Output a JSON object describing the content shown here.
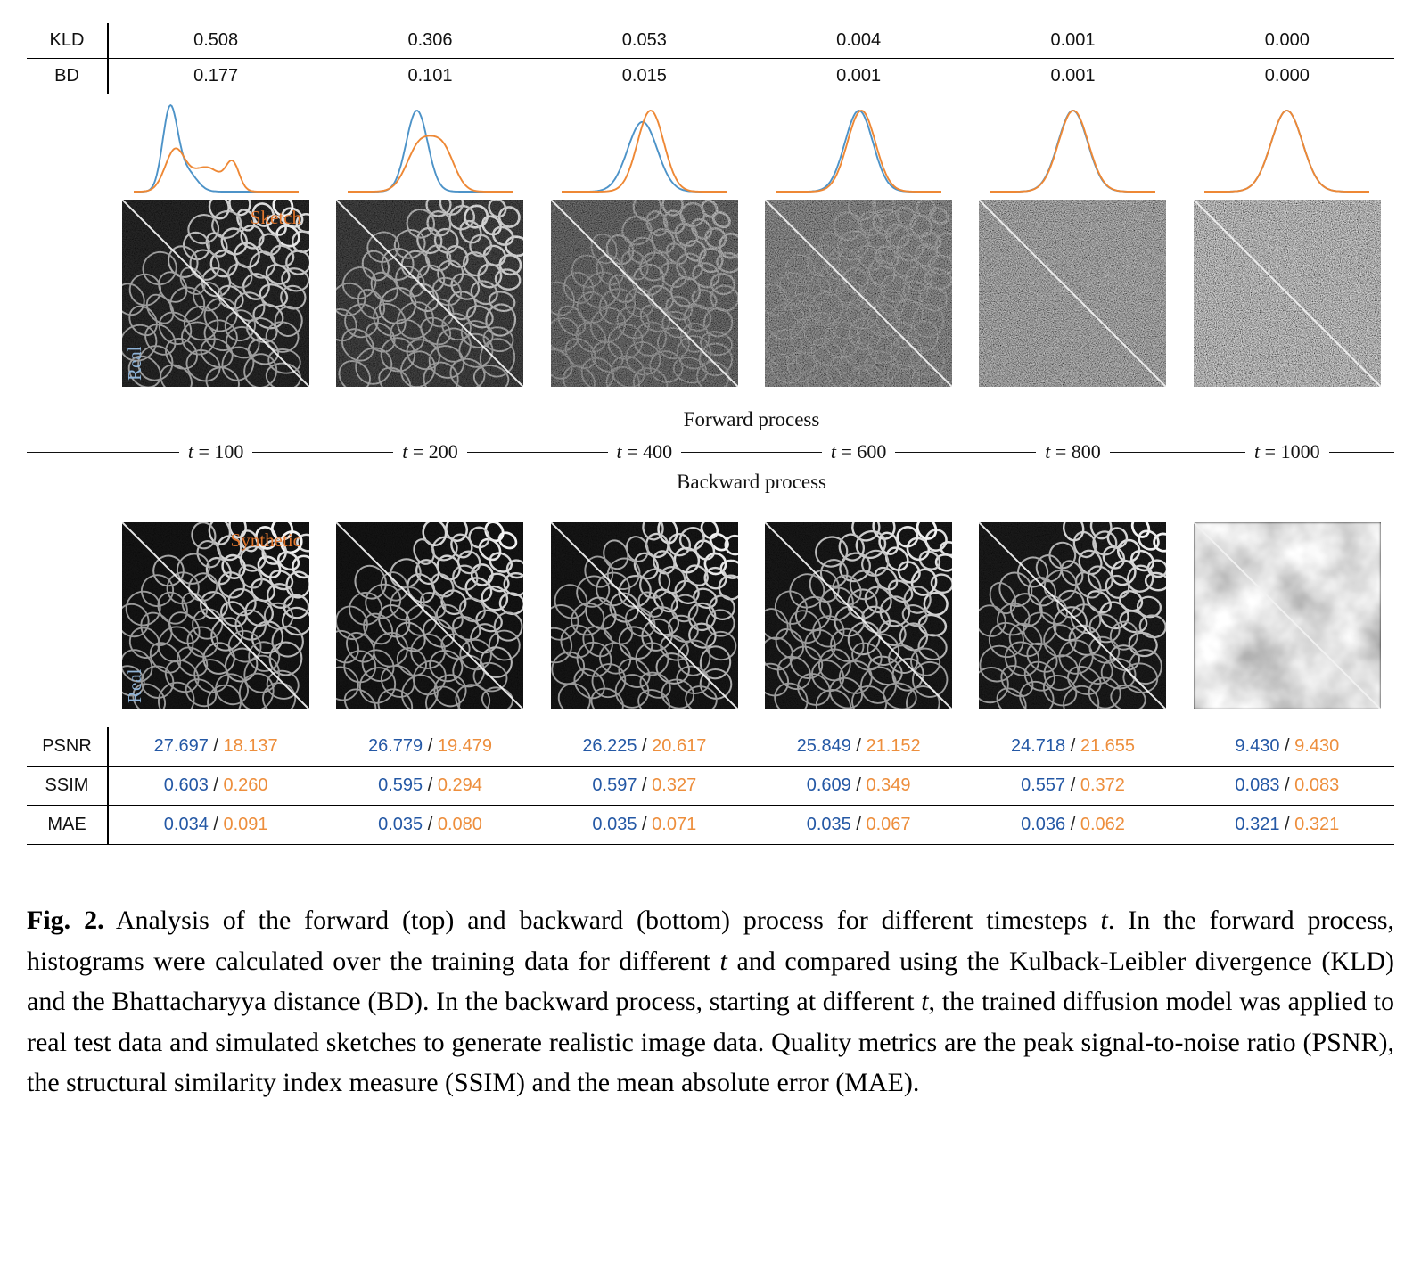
{
  "colors": {
    "table_blue": "#2458a5",
    "table_orange": "#ed8e3c",
    "hist_blue": "#4d93c8",
    "hist_orange": "#ee8835",
    "label_sketch": "#e2762c",
    "label_real": "#8fb4d9",
    "line_black": "#111111"
  },
  "top_table": {
    "rows": [
      {
        "label": "KLD",
        "values": [
          "0.508",
          "0.306",
          "0.053",
          "0.004",
          "0.001",
          "0.000"
        ]
      },
      {
        "label": "BD",
        "values": [
          "0.177",
          "0.101",
          "0.015",
          "0.001",
          "0.001",
          "0.000"
        ]
      }
    ]
  },
  "histograms": [
    {
      "blue": [
        {
          "m": 0.22,
          "s": 0.045,
          "a": 1.0
        },
        {
          "m": 0.32,
          "s": 0.06,
          "a": 0.25
        }
      ],
      "orange": [
        {
          "m": 0.25,
          "s": 0.06,
          "a": 0.5
        },
        {
          "m": 0.44,
          "s": 0.09,
          "a": 0.3
        },
        {
          "m": 0.6,
          "s": 0.04,
          "a": 0.32
        }
      ]
    },
    {
      "blue": [
        {
          "m": 0.42,
          "s": 0.065,
          "a": 1.0
        }
      ],
      "orange": [
        {
          "m": 0.44,
          "s": 0.08,
          "a": 0.58
        },
        {
          "m": 0.58,
          "s": 0.07,
          "a": 0.48
        }
      ]
    },
    {
      "blue": [
        {
          "m": 0.49,
          "s": 0.09,
          "a": 0.86
        }
      ],
      "orange": [
        {
          "m": 0.54,
          "s": 0.08,
          "a": 1.0
        }
      ]
    },
    {
      "blue": [
        {
          "m": 0.5,
          "s": 0.085,
          "a": 1.0
        }
      ],
      "orange": [
        {
          "m": 0.515,
          "s": 0.085,
          "a": 1.0
        }
      ]
    },
    {
      "blue": [
        {
          "m": 0.5,
          "s": 0.09,
          "a": 1.0
        }
      ],
      "orange": [
        {
          "m": 0.503,
          "s": 0.09,
          "a": 1.0
        }
      ]
    },
    {
      "blue": [
        {
          "m": 0.5,
          "s": 0.095,
          "a": 1.0
        }
      ],
      "orange": [
        {
          "m": 0.5,
          "s": 0.095,
          "a": 1.0
        }
      ]
    }
  ],
  "tiles": {
    "forward_labels": {
      "top": "Sketch",
      "side": "Real"
    },
    "backward_labels": {
      "top": "Synthetic",
      "side": "Real"
    },
    "forward": [
      {
        "cell": 1.0,
        "noise": 0.16
      },
      {
        "cell": 0.95,
        "noise": 0.3
      },
      {
        "cell": 0.62,
        "noise": 0.52
      },
      {
        "cell": 0.38,
        "noise": 0.7
      },
      {
        "cell": 0.15,
        "noise": 0.88
      },
      {
        "cell": 0.0,
        "noise": 1.0
      }
    ],
    "backward": [
      {
        "cell": 1.0,
        "noise": 0.07
      },
      {
        "cell": 1.0,
        "noise": 0.07
      },
      {
        "cell": 1.0,
        "noise": 0.08
      },
      {
        "cell": 1.0,
        "noise": 0.09
      },
      {
        "cell": 1.0,
        "noise": 0.1
      },
      {
        "cloud": true
      }
    ]
  },
  "process_labels": {
    "forward": "Forward process",
    "backward": "Backward process"
  },
  "timeline": {
    "var": "t",
    "separator": " = ",
    "values": [
      "100",
      "200",
      "400",
      "600",
      "800",
      "1000"
    ]
  },
  "bottom_table": {
    "separator": " / ",
    "rows": [
      {
        "label": "PSNR",
        "pairs": [
          [
            "27.697",
            "18.137"
          ],
          [
            "26.779",
            "19.479"
          ],
          [
            "26.225",
            "20.617"
          ],
          [
            "25.849",
            "21.152"
          ],
          [
            "24.718",
            "21.655"
          ],
          [
            "9.430",
            "9.430"
          ]
        ]
      },
      {
        "label": "SSIM",
        "pairs": [
          [
            "0.603",
            "0.260"
          ],
          [
            "0.595",
            "0.294"
          ],
          [
            "0.597",
            "0.327"
          ],
          [
            "0.609",
            "0.349"
          ],
          [
            "0.557",
            "0.372"
          ],
          [
            "0.083",
            "0.083"
          ]
        ]
      },
      {
        "label": "MAE",
        "pairs": [
          [
            "0.034",
            "0.091"
          ],
          [
            "0.035",
            "0.080"
          ],
          [
            "0.035",
            "0.071"
          ],
          [
            "0.035",
            "0.067"
          ],
          [
            "0.036",
            "0.062"
          ],
          [
            "0.321",
            "0.321"
          ]
        ]
      }
    ]
  },
  "caption": {
    "segments": [
      {
        "text": "Fig. 2.",
        "bold": true
      },
      {
        "text": " Analysis of the forward (top) and backward (bottom) process for different timesteps "
      },
      {
        "text": "t",
        "italic": true
      },
      {
        "text": ". In the forward process, histograms were calculated over the training data for different "
      },
      {
        "text": "t",
        "italic": true
      },
      {
        "text": " and compared using the Kulback-Leibler divergence (KLD) and the Bhattacharyya distance (BD). In the backward process, starting at different "
      },
      {
        "text": "t",
        "italic": true
      },
      {
        "text": ", the trained diffusion model was applied to real test data and simulated sketches to generate realistic image data. Quality metrics are the peak signal-to-noise ratio (PSNR), the structural similarity index measure (SSIM) and the mean absolute error (MAE)."
      }
    ]
  }
}
